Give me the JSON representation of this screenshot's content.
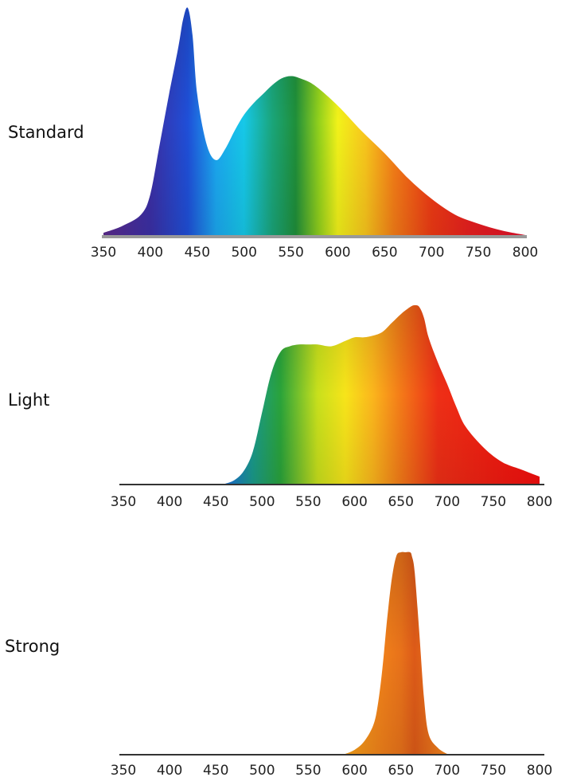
{
  "colors": {
    "spectrum_stops": [
      {
        "nm": 350,
        "color": "#5b2a8c"
      },
      {
        "nm": 400,
        "color": "#3b2fa5"
      },
      {
        "nm": 440,
        "color": "#1f4fd8"
      },
      {
        "nm": 470,
        "color": "#1ba7f0"
      },
      {
        "nm": 500,
        "color": "#16c8e8"
      },
      {
        "nm": 530,
        "color": "#1aa57a"
      },
      {
        "nm": 555,
        "color": "#1f8f3a"
      },
      {
        "nm": 580,
        "color": "#93d11c"
      },
      {
        "nm": 600,
        "color": "#f2f21a"
      },
      {
        "nm": 630,
        "color": "#f9c51c"
      },
      {
        "nm": 660,
        "color": "#f57d17"
      },
      {
        "nm": 700,
        "color": "#ee3a14"
      },
      {
        "nm": 740,
        "color": "#e81f1f"
      },
      {
        "nm": 800,
        "color": "#e0102a"
      }
    ],
    "light_stops": [
      {
        "nm": 460,
        "color": "#1a6fd8"
      },
      {
        "nm": 490,
        "color": "#1a9a8a"
      },
      {
        "nm": 520,
        "color": "#2aa33a"
      },
      {
        "nm": 560,
        "color": "#c8e01c"
      },
      {
        "nm": 590,
        "color": "#f7e41a"
      },
      {
        "nm": 620,
        "color": "#fbb51c"
      },
      {
        "nm": 650,
        "color": "#f47a18"
      },
      {
        "nm": 690,
        "color": "#ee2f16"
      },
      {
        "nm": 800,
        "color": "#f20d0d"
      }
    ],
    "strong_stops": [
      {
        "nm": 590,
        "color": "#f7a21a"
      },
      {
        "nm": 630,
        "color": "#f0801a"
      },
      {
        "nm": 650,
        "color": "#e8721a"
      },
      {
        "nm": 665,
        "color": "#dd5a18"
      },
      {
        "nm": 700,
        "color": "#f3861c"
      }
    ],
    "baseline": "#999999",
    "axis_line": "#333333"
  },
  "chart_data": [
    {
      "type": "area",
      "label": "Standard",
      "x": [
        350,
        370,
        390,
        400,
        410,
        420,
        430,
        435,
        440,
        445,
        450,
        460,
        470,
        480,
        490,
        500,
        510,
        520,
        530,
        540,
        550,
        560,
        575,
        600,
        625,
        650,
        675,
        700,
        725,
        750,
        775,
        800
      ],
      "y": [
        0.01,
        0.04,
        0.09,
        0.18,
        0.4,
        0.62,
        0.83,
        0.95,
        1.0,
        0.88,
        0.62,
        0.4,
        0.33,
        0.38,
        0.46,
        0.53,
        0.58,
        0.62,
        0.66,
        0.69,
        0.7,
        0.69,
        0.66,
        0.57,
        0.46,
        0.36,
        0.25,
        0.16,
        0.09,
        0.05,
        0.02,
        0.0
      ],
      "xlim": [
        350,
        800
      ],
      "tick_labels": [
        "350",
        "400",
        "450",
        "500",
        "550",
        "600",
        "650",
        "700",
        "750",
        "800"
      ]
    },
    {
      "type": "area",
      "label": "Light",
      "x": [
        460,
        470,
        480,
        490,
        500,
        510,
        520,
        530,
        540,
        550,
        560,
        575,
        590,
        600,
        610,
        620,
        630,
        640,
        650,
        660,
        665,
        670,
        675,
        680,
        690,
        700,
        710,
        720,
        740,
        760,
        780,
        790,
        800
      ],
      "y": [
        0.0,
        0.02,
        0.07,
        0.18,
        0.4,
        0.62,
        0.74,
        0.77,
        0.78,
        0.78,
        0.78,
        0.77,
        0.8,
        0.82,
        0.82,
        0.83,
        0.85,
        0.9,
        0.95,
        0.99,
        1.0,
        0.99,
        0.93,
        0.82,
        0.68,
        0.56,
        0.43,
        0.32,
        0.2,
        0.12,
        0.08,
        0.06,
        0.04
      ],
      "xlim": [
        350,
        800
      ],
      "tick_labels": [
        "350",
        "400",
        "450",
        "500",
        "550",
        "600",
        "650",
        "700",
        "750",
        "800"
      ]
    },
    {
      "type": "area",
      "label": "Strong",
      "x": [
        590,
        600,
        610,
        620,
        625,
        630,
        635,
        640,
        645,
        650,
        655,
        660,
        662,
        665,
        670,
        675,
        680,
        690,
        700
      ],
      "y": [
        0.0,
        0.02,
        0.06,
        0.14,
        0.24,
        0.42,
        0.66,
        0.86,
        0.98,
        1.0,
        1.0,
        1.0,
        0.98,
        0.9,
        0.6,
        0.28,
        0.1,
        0.03,
        0.0
      ],
      "xlim": [
        350,
        800
      ],
      "tick_labels": [
        "350",
        "400",
        "450",
        "500",
        "550",
        "600",
        "650",
        "700",
        "750",
        "800"
      ]
    }
  ]
}
